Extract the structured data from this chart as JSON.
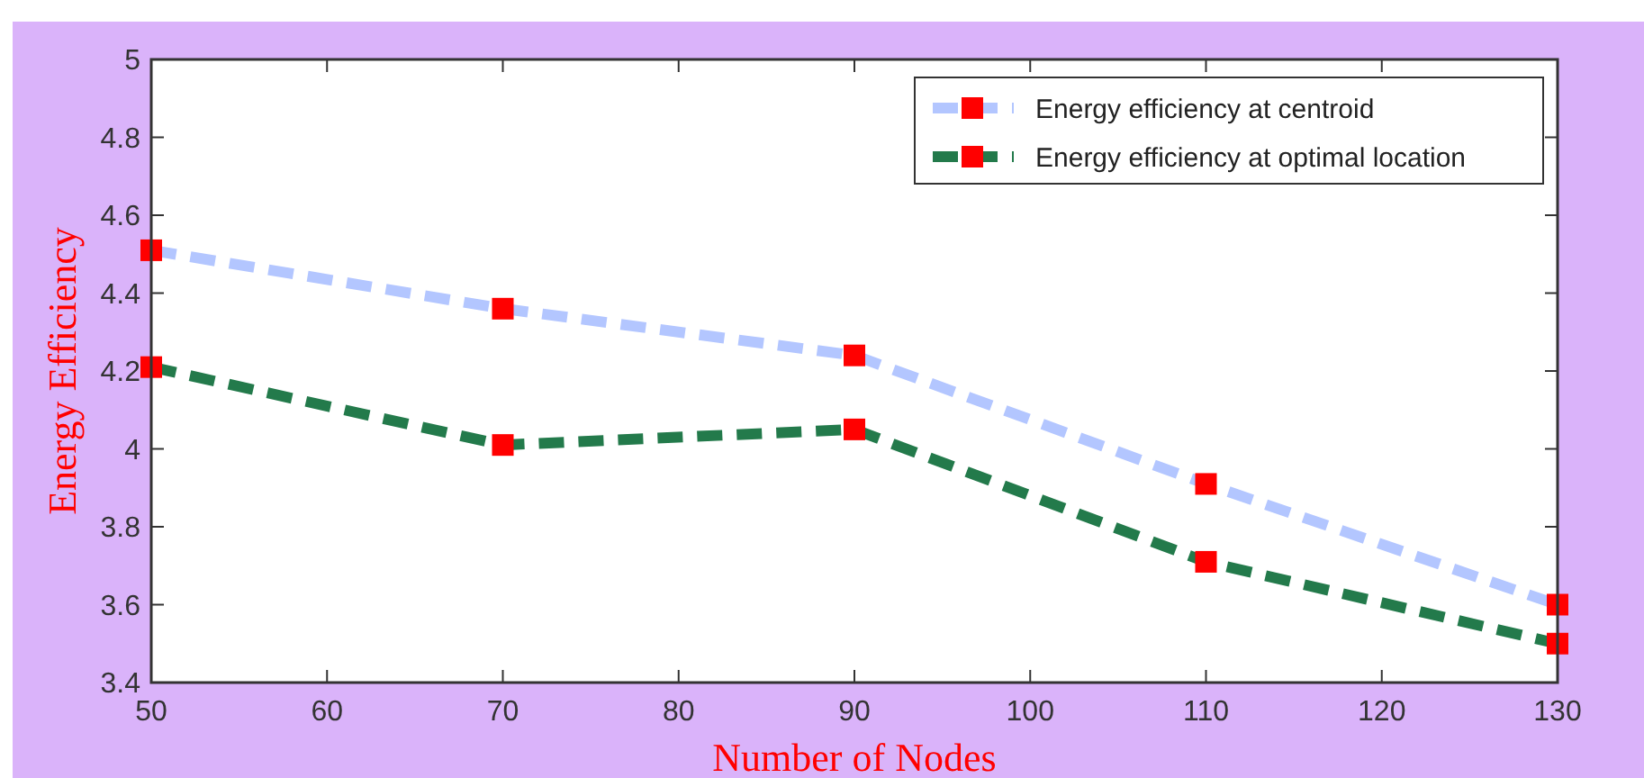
{
  "chart_data": {
    "type": "line",
    "xlabel": "Number of Nodes",
    "ylabel": "Energy Efficiency",
    "x": [
      50,
      70,
      90,
      110,
      130
    ],
    "series": [
      {
        "name": "Energy efficiency at centroid",
        "color": "#b3c6ff",
        "values": [
          4.51,
          4.36,
          4.24,
          3.91,
          3.6
        ]
      },
      {
        "name": "Energy efficiency at optimal location",
        "color": "#237a4b",
        "values": [
          4.21,
          4.01,
          4.05,
          3.71,
          3.5
        ]
      }
    ],
    "xlim": [
      50,
      130
    ],
    "xticks": [
      50,
      60,
      70,
      80,
      90,
      100,
      110,
      120,
      130
    ],
    "ylim": [
      3.4,
      5
    ],
    "yticks": [
      3.4,
      3.6,
      3.8,
      4,
      4.2,
      4.4,
      4.6,
      4.8,
      5
    ],
    "grid": false,
    "legend": "top right",
    "marker": "square",
    "line_style": "dashed"
  }
}
